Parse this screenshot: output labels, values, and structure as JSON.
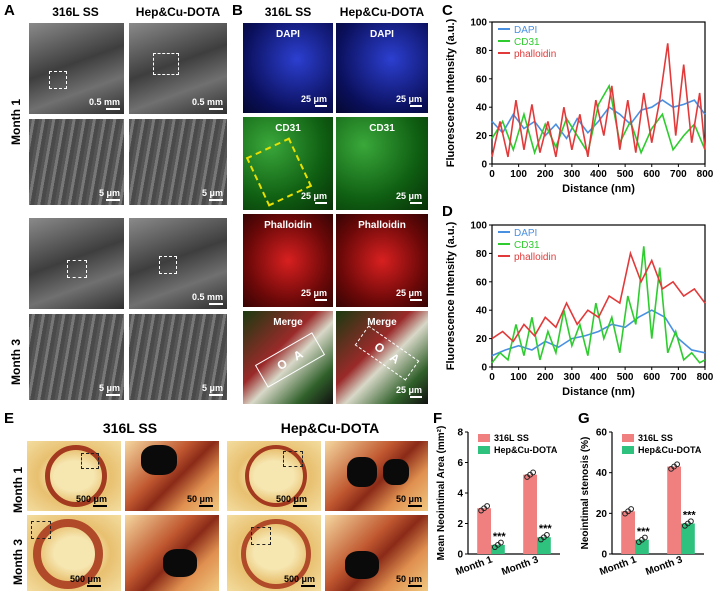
{
  "panels": {
    "A": "A",
    "B": "B",
    "C": "C",
    "D": "D",
    "E": "E",
    "F": "F",
    "G": "G"
  },
  "groups": {
    "ctrl": "316L SS",
    "treat": "Hep&Cu-DOTA"
  },
  "rows": {
    "m1": "Month 1",
    "m3": "Month 3"
  },
  "scalebars": {
    "half_mm": "0.5 mm",
    "five_um": "5 μm",
    "twentyfive_um": "25 μm",
    "five_hundred_um": "500 μm",
    "fifty_um": "50 μm"
  },
  "channels": {
    "dapi": "DAPI",
    "cd31": "CD31",
    "phalloidin": "Phalloidin",
    "merge": "Merge"
  },
  "chart_data": [
    {
      "id": "C",
      "type": "line",
      "xlabel": "Distance (nm)",
      "ylabel": "Fluorescence Intensity (a.u.)",
      "xlim": [
        0,
        800
      ],
      "ylim": [
        0,
        100
      ],
      "xticks": [
        0,
        100,
        200,
        300,
        400,
        500,
        600,
        700,
        800
      ],
      "yticks": [
        0,
        20,
        40,
        60,
        80,
        100
      ],
      "legend": [
        "DAPI",
        "CD31",
        "phalloidin"
      ],
      "series": [
        {
          "name": "DAPI",
          "color": "#4a90e2",
          "x": [
            0,
            40,
            80,
            120,
            160,
            200,
            240,
            280,
            320,
            360,
            400,
            440,
            480,
            520,
            560,
            600,
            640,
            680,
            720,
            760,
            800
          ],
          "values": [
            30,
            22,
            35,
            25,
            30,
            20,
            28,
            18,
            32,
            22,
            30,
            40,
            35,
            28,
            38,
            40,
            45,
            40,
            42,
            45,
            35
          ]
        },
        {
          "name": "CD31",
          "color": "#2ecc2e",
          "x": [
            0,
            40,
            80,
            120,
            160,
            200,
            240,
            280,
            320,
            360,
            400,
            440,
            480,
            520,
            560,
            600,
            640,
            680,
            720,
            760,
            800
          ],
          "values": [
            18,
            30,
            10,
            35,
            8,
            28,
            12,
            32,
            20,
            8,
            42,
            55,
            15,
            30,
            8,
            25,
            35,
            10,
            20,
            28,
            10
          ]
        },
        {
          "name": "phalloidin",
          "color": "#e23a3a",
          "x": [
            0,
            30,
            60,
            90,
            120,
            150,
            180,
            210,
            240,
            270,
            300,
            330,
            360,
            390,
            420,
            450,
            480,
            510,
            540,
            570,
            600,
            630,
            660,
            690,
            720,
            750,
            780,
            800
          ],
          "values": [
            5,
            30,
            5,
            45,
            10,
            42,
            8,
            30,
            5,
            40,
            10,
            35,
            5,
            45,
            20,
            55,
            10,
            45,
            8,
            50,
            15,
            45,
            85,
            20,
            70,
            15,
            50,
            10
          ]
        }
      ]
    },
    {
      "id": "D",
      "type": "line",
      "xlabel": "Distance (nm)",
      "ylabel": "Fluorescence Intensity (a.u.)",
      "xlim": [
        0,
        800
      ],
      "ylim": [
        0,
        100
      ],
      "xticks": [
        0,
        100,
        200,
        300,
        400,
        500,
        600,
        700,
        800
      ],
      "yticks": [
        0,
        20,
        40,
        60,
        80,
        100
      ],
      "legend": [
        "DAPI",
        "CD31",
        "phalloidin"
      ],
      "series": [
        {
          "name": "DAPI",
          "color": "#4a90e2",
          "x": [
            0,
            50,
            100,
            150,
            200,
            250,
            300,
            350,
            400,
            450,
            500,
            550,
            600,
            650,
            700,
            750,
            800
          ],
          "values": [
            8,
            12,
            15,
            12,
            18,
            14,
            20,
            22,
            25,
            30,
            28,
            35,
            40,
            35,
            20,
            12,
            10
          ]
        },
        {
          "name": "CD31",
          "color": "#2ecc2e",
          "x": [
            0,
            30,
            60,
            90,
            120,
            150,
            180,
            210,
            240,
            270,
            300,
            330,
            360,
            390,
            420,
            450,
            480,
            510,
            540,
            570,
            600,
            630,
            660,
            690,
            720,
            750,
            780,
            800
          ],
          "values": [
            3,
            10,
            5,
            30,
            8,
            35,
            5,
            25,
            10,
            40,
            15,
            30,
            8,
            45,
            20,
            35,
            10,
            50,
            30,
            85,
            20,
            70,
            10,
            25,
            5,
            10,
            3,
            5
          ]
        },
        {
          "name": "phalloidin",
          "color": "#e23a3a",
          "x": [
            0,
            40,
            80,
            120,
            160,
            200,
            240,
            280,
            320,
            360,
            400,
            440,
            480,
            520,
            560,
            600,
            640,
            680,
            720,
            760,
            800
          ],
          "values": [
            20,
            25,
            18,
            30,
            22,
            35,
            28,
            45,
            30,
            40,
            35,
            50,
            45,
            80,
            60,
            75,
            55,
            60,
            50,
            55,
            45
          ]
        }
      ]
    },
    {
      "id": "F",
      "type": "bar",
      "ylabel": "Mean Neointimal Area (mm²)",
      "categories": [
        "Month 1",
        "Month 3"
      ],
      "ylim": [
        0,
        8
      ],
      "yticks": [
        0,
        2,
        4,
        6,
        8
      ],
      "series": [
        {
          "name": "316L SS",
          "color": "#f08080",
          "values": [
            3.0,
            5.2
          ]
        },
        {
          "name": "Hep&Cu-DOTA",
          "color": "#2ec27e",
          "values": [
            0.6,
            1.1
          ]
        }
      ],
      "significance": [
        "***",
        "***"
      ]
    },
    {
      "id": "G",
      "type": "bar",
      "ylabel": "Neointimal stenosis (%)",
      "categories": [
        "Month 1",
        "Month 3"
      ],
      "ylim": [
        0,
        60
      ],
      "yticks": [
        0,
        20,
        40,
        60
      ],
      "series": [
        {
          "name": "316L SS",
          "color": "#f08080",
          "values": [
            21,
            43
          ]
        },
        {
          "name": "Hep&Cu-DOTA",
          "color": "#2ec27e",
          "values": [
            7,
            15
          ]
        }
      ],
      "significance": [
        "***",
        "***"
      ]
    }
  ]
}
